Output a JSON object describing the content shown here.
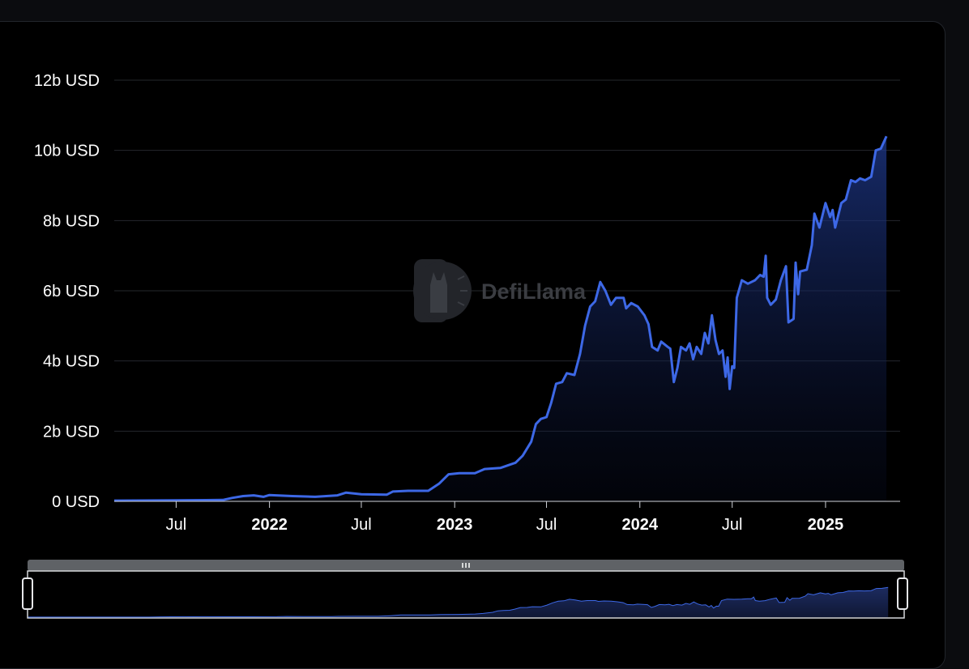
{
  "watermark": {
    "text": "DefiLlama"
  },
  "chart_data": {
    "type": "area",
    "title": "",
    "xlabel": "",
    "ylabel": "",
    "y_unit": "USD",
    "ylim": [
      0,
      12
    ],
    "yticks": [
      "0 USD",
      "2b USD",
      "4b USD",
      "6b USD",
      "8b USD",
      "10b USD",
      "12b USD"
    ],
    "yticks_values": [
      0,
      2,
      4,
      6,
      8,
      10,
      12
    ],
    "xlim": [
      "2021-03-01",
      "2025-05-28"
    ],
    "xticks": [
      {
        "label": "Jul",
        "date": "2021-07-01",
        "bold": false
      },
      {
        "label": "2022",
        "date": "2022-01-01",
        "bold": true
      },
      {
        "label": "Jul",
        "date": "2022-07-01",
        "bold": false
      },
      {
        "label": "2023",
        "date": "2023-01-01",
        "bold": true
      },
      {
        "label": "Jul",
        "date": "2023-07-01",
        "bold": false
      },
      {
        "label": "2024",
        "date": "2024-01-01",
        "bold": true
      },
      {
        "label": "Jul",
        "date": "2024-07-01",
        "bold": false
      },
      {
        "label": "2025",
        "date": "2025-01-01",
        "bold": true
      }
    ],
    "grid": true,
    "legend": "none",
    "series_color": "#3d68e6",
    "series": [
      {
        "name": "",
        "unit": "billion USD",
        "points": [
          [
            "2021-03-01",
            0.02
          ],
          [
            "2021-07-01",
            0.03
          ],
          [
            "2021-10-01",
            0.04
          ],
          [
            "2021-10-20",
            0.1
          ],
          [
            "2021-11-10",
            0.15
          ],
          [
            "2021-12-01",
            0.17
          ],
          [
            "2021-12-20",
            0.13
          ],
          [
            "2022-01-01",
            0.18
          ],
          [
            "2022-02-15",
            0.15
          ],
          [
            "2022-04-01",
            0.13
          ],
          [
            "2022-05-15",
            0.17
          ],
          [
            "2022-06-01",
            0.25
          ],
          [
            "2022-07-01",
            0.2
          ],
          [
            "2022-08-20",
            0.19
          ],
          [
            "2022-09-01",
            0.28
          ],
          [
            "2022-10-01",
            0.3
          ],
          [
            "2022-11-10",
            0.3
          ],
          [
            "2022-12-01",
            0.5
          ],
          [
            "2022-12-20",
            0.77
          ],
          [
            "2023-01-10",
            0.8
          ],
          [
            "2023-02-10",
            0.8
          ],
          [
            "2023-03-01",
            0.92
          ],
          [
            "2023-04-01",
            0.95
          ],
          [
            "2023-05-01",
            1.1
          ],
          [
            "2023-05-15",
            1.3
          ],
          [
            "2023-06-01",
            1.7
          ],
          [
            "2023-06-10",
            2.2
          ],
          [
            "2023-06-20",
            2.35
          ],
          [
            "2023-07-01",
            2.4
          ],
          [
            "2023-07-10",
            2.8
          ],
          [
            "2023-07-20",
            3.35
          ],
          [
            "2023-08-01",
            3.4
          ],
          [
            "2023-08-10",
            3.65
          ],
          [
            "2023-08-25",
            3.6
          ],
          [
            "2023-09-05",
            4.2
          ],
          [
            "2023-09-15",
            5.0
          ],
          [
            "2023-09-25",
            5.55
          ],
          [
            "2023-10-05",
            5.7
          ],
          [
            "2023-10-15",
            6.25
          ],
          [
            "2023-10-25",
            6.0
          ],
          [
            "2023-11-05",
            5.6
          ],
          [
            "2023-11-15",
            5.8
          ],
          [
            "2023-11-30",
            5.8
          ],
          [
            "2023-12-05",
            5.5
          ],
          [
            "2023-12-15",
            5.65
          ],
          [
            "2023-12-28",
            5.55
          ],
          [
            "2024-01-10",
            5.3
          ],
          [
            "2024-01-18",
            5.05
          ],
          [
            "2024-01-25",
            4.4
          ],
          [
            "2024-02-05",
            4.3
          ],
          [
            "2024-02-12",
            4.55
          ],
          [
            "2024-02-25",
            4.4
          ],
          [
            "2024-03-01",
            4.35
          ],
          [
            "2024-03-08",
            3.4
          ],
          [
            "2024-03-15",
            3.8
          ],
          [
            "2024-03-22",
            4.4
          ],
          [
            "2024-04-01",
            4.3
          ],
          [
            "2024-04-08",
            4.5
          ],
          [
            "2024-04-15",
            4.05
          ],
          [
            "2024-04-22",
            4.4
          ],
          [
            "2024-05-01",
            4.2
          ],
          [
            "2024-05-08",
            4.8
          ],
          [
            "2024-05-15",
            4.5
          ],
          [
            "2024-05-22",
            5.3
          ],
          [
            "2024-05-29",
            4.6
          ],
          [
            "2024-06-05",
            4.2
          ],
          [
            "2024-06-12",
            4.3
          ],
          [
            "2024-06-18",
            3.55
          ],
          [
            "2024-06-22",
            4.1
          ],
          [
            "2024-06-26",
            3.2
          ],
          [
            "2024-07-01",
            3.85
          ],
          [
            "2024-07-05",
            3.8
          ],
          [
            "2024-07-10",
            5.8
          ],
          [
            "2024-07-20",
            6.3
          ],
          [
            "2024-08-01",
            6.2
          ],
          [
            "2024-08-15",
            6.3
          ],
          [
            "2024-08-25",
            6.45
          ],
          [
            "2024-09-01",
            6.4
          ],
          [
            "2024-09-05",
            7.0
          ],
          [
            "2024-09-08",
            5.8
          ],
          [
            "2024-09-15",
            5.6
          ],
          [
            "2024-09-25",
            5.75
          ],
          [
            "2024-10-05",
            6.3
          ],
          [
            "2024-10-15",
            6.7
          ],
          [
            "2024-10-20",
            5.1
          ],
          [
            "2024-10-30",
            5.2
          ],
          [
            "2024-11-03",
            6.8
          ],
          [
            "2024-11-08",
            5.9
          ],
          [
            "2024-11-12",
            6.55
          ],
          [
            "2024-11-25",
            6.6
          ],
          [
            "2024-12-05",
            7.3
          ],
          [
            "2024-12-10",
            8.2
          ],
          [
            "2024-12-20",
            7.8
          ],
          [
            "2025-01-01",
            8.5
          ],
          [
            "2025-01-10",
            8.1
          ],
          [
            "2025-01-15",
            8.3
          ],
          [
            "2025-01-20",
            7.8
          ],
          [
            "2025-02-01",
            8.5
          ],
          [
            "2025-02-10",
            8.6
          ],
          [
            "2025-02-20",
            9.15
          ],
          [
            "2025-03-01",
            9.1
          ],
          [
            "2025-03-10",
            9.2
          ],
          [
            "2025-03-20",
            9.15
          ],
          [
            "2025-04-01",
            9.25
          ],
          [
            "2025-04-10",
            10.0
          ],
          [
            "2025-04-20",
            10.05
          ],
          [
            "2025-05-01",
            10.4
          ]
        ]
      }
    ]
  }
}
